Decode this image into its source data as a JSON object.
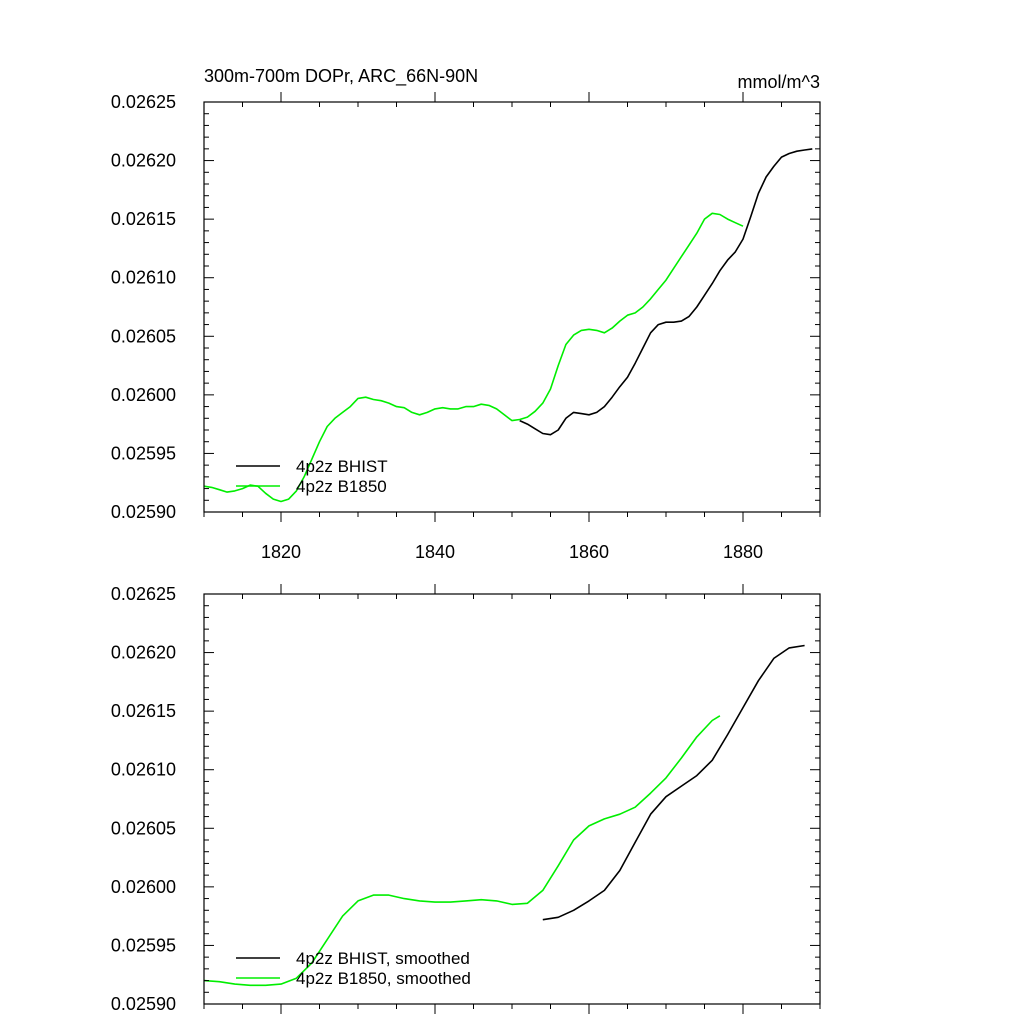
{
  "chart_data": [
    {
      "type": "line",
      "title": "300m-700m DOPr, ARC_66N-90N",
      "units": "mmol/m^3",
      "xlim": [
        1810,
        1890
      ],
      "ylim": [
        0.0259,
        0.02625
      ],
      "xticks": [
        1820,
        1840,
        1860,
        1880
      ],
      "yticks": [
        0.0259,
        0.02595,
        0.026,
        0.02605,
        0.0261,
        0.02615,
        0.0262,
        0.02625
      ],
      "ytick_labels": [
        "0.02590",
        "0.02595",
        "0.02600",
        "0.02605",
        "0.02610",
        "0.02615",
        "0.02620",
        "0.02625"
      ],
      "xtick_labels": [
        "1820",
        "1840",
        "1860",
        "1880"
      ],
      "legend_position": "bottom-left",
      "series": [
        {
          "name": "4p2z BHIST",
          "color": "#000000",
          "x": [
            1851,
            1852,
            1853,
            1854,
            1855,
            1856,
            1857,
            1858,
            1859,
            1860,
            1861,
            1862,
            1863,
            1864,
            1865,
            1866,
            1867,
            1868,
            1869,
            1870,
            1871,
            1872,
            1873,
            1874,
            1875,
            1876,
            1877,
            1878,
            1879,
            1880,
            1881,
            1882,
            1883,
            1884,
            1885,
            1886,
            1887,
            1888,
            1889
          ],
          "y": [
            0.025978,
            0.025975,
            0.025971,
            0.025967,
            0.025966,
            0.02597,
            0.02598,
            0.025985,
            0.025984,
            0.025983,
            0.025985,
            0.02599,
            0.025998,
            0.026007,
            0.026015,
            0.026027,
            0.02604,
            0.026053,
            0.02606,
            0.026062,
            0.026062,
            0.026063,
            0.026067,
            0.026075,
            0.026085,
            0.026095,
            0.026106,
            0.026115,
            0.026122,
            0.026133,
            0.026152,
            0.026172,
            0.026186,
            0.026195,
            0.026203,
            0.026206,
            0.026208,
            0.026209,
            0.02621
          ]
        },
        {
          "name": "4p2z B1850",
          "color": "#00ee00",
          "x": [
            1810,
            1811,
            1812,
            1813,
            1814,
            1815,
            1816,
            1817,
            1818,
            1819,
            1820,
            1821,
            1822,
            1823,
            1824,
            1825,
            1826,
            1827,
            1828,
            1829,
            1830,
            1831,
            1832,
            1833,
            1834,
            1835,
            1836,
            1837,
            1838,
            1839,
            1840,
            1841,
            1842,
            1843,
            1844,
            1845,
            1846,
            1847,
            1848,
            1849,
            1850,
            1851,
            1852,
            1853,
            1854,
            1855,
            1856,
            1857,
            1858,
            1859,
            1860,
            1861,
            1862,
            1863,
            1864,
            1865,
            1866,
            1867,
            1868,
            1869,
            1870,
            1871,
            1872,
            1873,
            1874,
            1875,
            1876,
            1877,
            1878,
            1879,
            1880
          ],
          "y": [
            0.025922,
            0.025921,
            0.025919,
            0.025917,
            0.025918,
            0.02592,
            0.025923,
            0.025922,
            0.025916,
            0.025911,
            0.025909,
            0.025911,
            0.025918,
            0.02593,
            0.025945,
            0.02596,
            0.025973,
            0.02598,
            0.025985,
            0.02599,
            0.025997,
            0.025998,
            0.025996,
            0.025995,
            0.025993,
            0.02599,
            0.025989,
            0.025985,
            0.025983,
            0.025985,
            0.025988,
            0.025989,
            0.025988,
            0.025988,
            0.02599,
            0.02599,
            0.025992,
            0.025991,
            0.025988,
            0.025983,
            0.025978,
            0.025979,
            0.025981,
            0.025986,
            0.025993,
            0.026005,
            0.026025,
            0.026043,
            0.026051,
            0.026055,
            0.026056,
            0.026055,
            0.026053,
            0.026057,
            0.026063,
            0.026068,
            0.02607,
            0.026075,
            0.026082,
            0.02609,
            0.026098,
            0.026108,
            0.026118,
            0.026128,
            0.026138,
            0.02615,
            0.026155,
            0.026154,
            0.02615,
            0.026147,
            0.026144
          ]
        }
      ]
    },
    {
      "type": "line",
      "title": "",
      "units": "",
      "xlim": [
        1810,
        1890
      ],
      "ylim": [
        0.0259,
        0.02625
      ],
      "yticks": [
        0.0259,
        0.02595,
        0.026,
        0.02605,
        0.0261,
        0.02615,
        0.0262,
        0.02625
      ],
      "ytick_labels": [
        "0.02590",
        "0.02595",
        "0.02600",
        "0.02605",
        "0.02610",
        "0.02615",
        "0.02620",
        "0.02625"
      ],
      "legend_position": "bottom-left",
      "series": [
        {
          "name": "4p2z BHIST, smoothed",
          "color": "#000000",
          "x": [
            1854,
            1856,
            1858,
            1860,
            1862,
            1864,
            1866,
            1868,
            1870,
            1872,
            1874,
            1876,
            1878,
            1880,
            1882,
            1884,
            1886,
            1888
          ],
          "y": [
            0.025972,
            0.025974,
            0.02598,
            0.025988,
            0.025997,
            0.026014,
            0.026038,
            0.026062,
            0.026077,
            0.026086,
            0.026095,
            0.026108,
            0.02613,
            0.026153,
            0.026176,
            0.026195,
            0.026204,
            0.026206
          ]
        },
        {
          "name": "4p2z B1850, smoothed",
          "color": "#00ee00",
          "x": [
            1810,
            1812,
            1814,
            1816,
            1818,
            1820,
            1822,
            1824,
            1826,
            1828,
            1830,
            1832,
            1834,
            1836,
            1838,
            1840,
            1842,
            1844,
            1846,
            1848,
            1850,
            1852,
            1854,
            1856,
            1858,
            1860,
            1862,
            1864,
            1866,
            1868,
            1870,
            1872,
            1874,
            1876,
            1877
          ],
          "y": [
            0.02592,
            0.025919,
            0.025917,
            0.025916,
            0.025916,
            0.025917,
            0.025922,
            0.025935,
            0.025955,
            0.025975,
            0.025988,
            0.025993,
            0.025993,
            0.02599,
            0.025988,
            0.025987,
            0.025987,
            0.025988,
            0.025989,
            0.025988,
            0.025985,
            0.025986,
            0.025997,
            0.026018,
            0.02604,
            0.026052,
            0.026058,
            0.026062,
            0.026068,
            0.02608,
            0.026093,
            0.02611,
            0.026128,
            0.026142,
            0.026146
          ]
        }
      ]
    }
  ]
}
